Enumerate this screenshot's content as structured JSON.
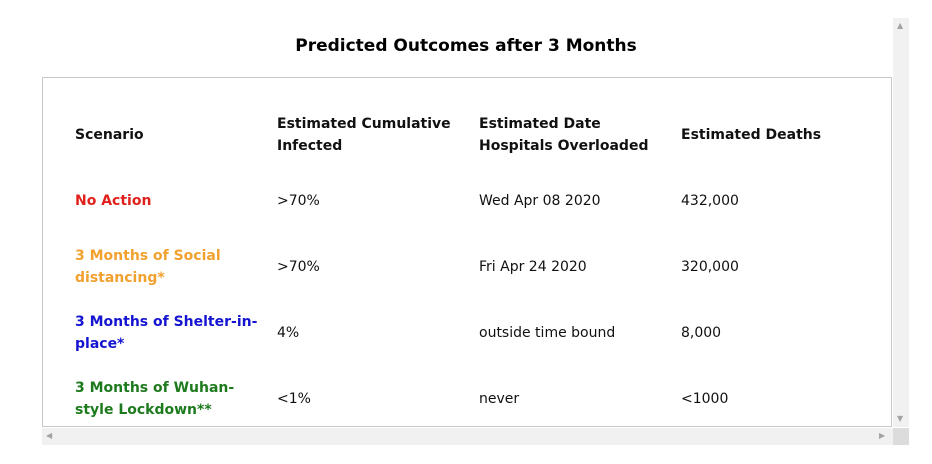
{
  "title": "Predicted Outcomes after 3 Months",
  "table": {
    "headers": [
      "Scenario",
      "Estimated Cumulative Infected",
      "Estimated Date Hospitals Overloaded",
      "Estimated Deaths"
    ],
    "rows": [
      {
        "scenario": "No Action",
        "color": "#e0201b",
        "infected": ">70%",
        "date": "Wed Apr 08 2020",
        "deaths": "432,000"
      },
      {
        "scenario": "3 Months of Social distancing*",
        "color": "#f2a12e",
        "infected": ">70%",
        "date": "Fri Apr 24 2020",
        "deaths": "320,000"
      },
      {
        "scenario": "3 Months of Shelter-in-place*",
        "color": "#1515d1",
        "infected": "4%",
        "date": "outside time bound",
        "deaths": "8,000"
      },
      {
        "scenario": "3 Months of Wuhan-style Lockdown**",
        "color": "#1d7a1d",
        "infected": "<1%",
        "date": "never",
        "deaths": "<1000"
      }
    ]
  },
  "icons": {
    "scroll_up": "triangle-up-icon",
    "scroll_down": "triangle-down-icon",
    "scroll_left": "triangle-left-icon",
    "scroll_right": "triangle-right-icon"
  }
}
